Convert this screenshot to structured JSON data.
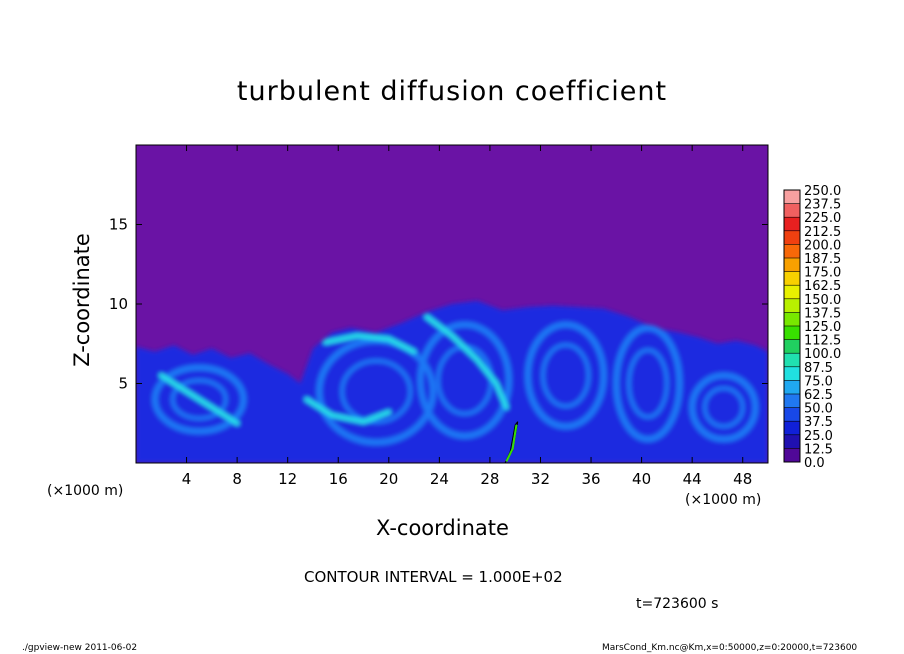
{
  "chart_data": {
    "type": "heatmap",
    "title": "turbulent diffusion coefficient",
    "xlabel": "X-coordinate",
    "ylabel": "Z-coordinate",
    "x_unit_left": "(×1000 m)",
    "x_unit_right": "(×1000 m)",
    "xlim": [
      0,
      50
    ],
    "ylim": [
      0,
      20
    ],
    "xticks": [
      "4",
      "8",
      "12",
      "16",
      "20",
      "24",
      "28",
      "32",
      "36",
      "40",
      "44",
      "48"
    ],
    "xtick_values": [
      4,
      8,
      12,
      16,
      20,
      24,
      28,
      32,
      36,
      40,
      44,
      48
    ],
    "yticks": [
      "5",
      "10",
      "15"
    ],
    "ytick_values": [
      5,
      10,
      15
    ],
    "colorbar": {
      "levels": [
        "250.0",
        "237.5",
        "225.0",
        "212.5",
        "200.0",
        "187.5",
        "175.0",
        "162.5",
        "150.0",
        "137.5",
        "125.0",
        "112.5",
        "100.0",
        "87.5",
        "75.0",
        "62.5",
        "50.0",
        "37.5",
        "25.0",
        "12.5",
        "0.0"
      ],
      "colors": [
        "#f8a0a0",
        "#f06060",
        "#e82020",
        "#f04010",
        "#f86808",
        "#f8a000",
        "#f8d000",
        "#e8f000",
        "#b8f000",
        "#78e800",
        "#38e000",
        "#20d060",
        "#20e0b0",
        "#20e0e0",
        "#20a8f0",
        "#2078f0",
        "#1848e8",
        "#1020d8",
        "#2010b0",
        "#500898"
      ],
      "background": "#6a13a5"
    },
    "field_description_colors": {
      "background": "#6a13a5",
      "low": "#1a2ae0",
      "mid": "#1f78f5",
      "high": "#28e0e8"
    },
    "contour_interval": "CONTOUR INTERVAL = 1.000E+02",
    "time": "t=723600 s"
  },
  "footer": {
    "left": "./gpview-new 2011-06-02",
    "right": "MarsCond_Km.nc@Km,x=0:50000,z=0:20000,t=723600"
  }
}
